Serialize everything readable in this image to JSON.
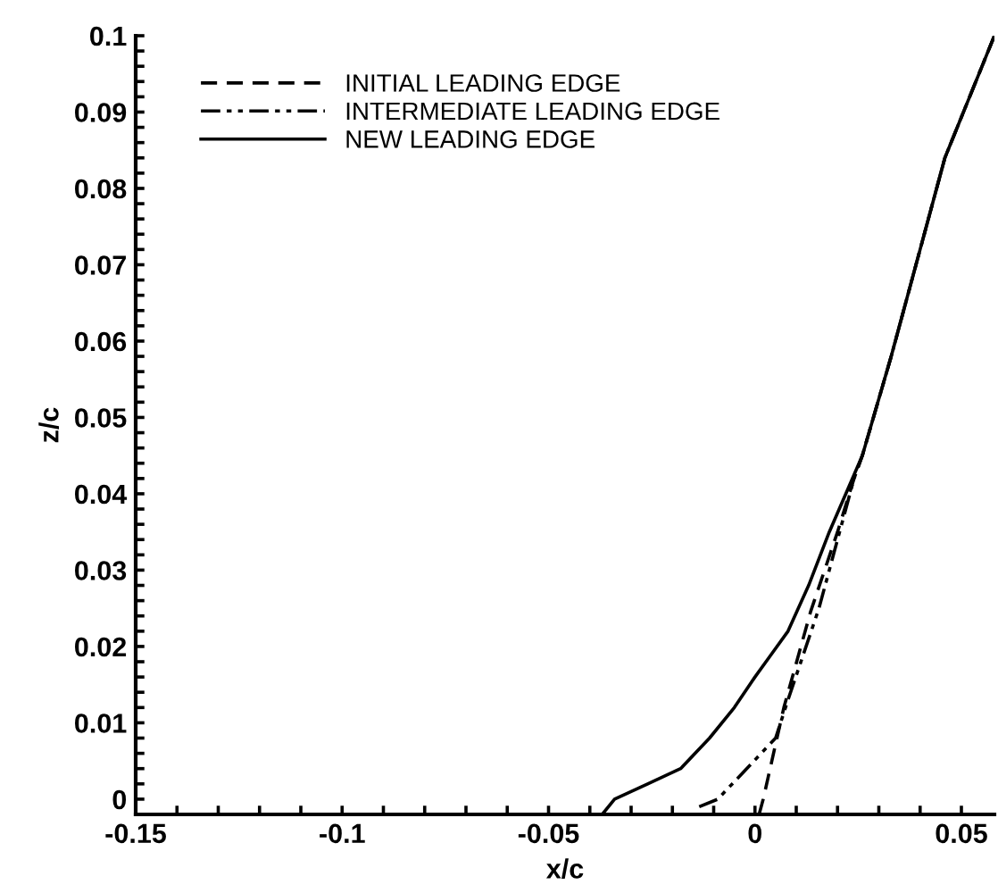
{
  "chart_data": {
    "type": "line",
    "xlabel": "x/c",
    "ylabel": "z/c",
    "xlim": [
      -0.15,
      0.058
    ],
    "ylim": [
      -0.002,
      0.1
    ],
    "xticks": [
      {
        "value": -0.15,
        "label": "-0.15"
      },
      {
        "value": -0.14,
        "label": null
      },
      {
        "value": -0.13,
        "label": null
      },
      {
        "value": -0.12,
        "label": null
      },
      {
        "value": -0.11,
        "label": null
      },
      {
        "value": -0.1,
        "label": "-0.1"
      },
      {
        "value": -0.09,
        "label": null
      },
      {
        "value": -0.08,
        "label": null
      },
      {
        "value": -0.07,
        "label": null
      },
      {
        "value": -0.06,
        "label": null
      },
      {
        "value": -0.05,
        "label": "-0.05"
      },
      {
        "value": -0.04,
        "label": null
      },
      {
        "value": -0.03,
        "label": null
      },
      {
        "value": -0.02,
        "label": null
      },
      {
        "value": -0.01,
        "label": null
      },
      0,
      {
        "value": 0.01,
        "label": null
      },
      {
        "value": 0.02,
        "label": null
      },
      {
        "value": 0.03,
        "label": null
      },
      {
        "value": 0.04,
        "label": null
      },
      0.05
    ],
    "yticks": [
      0,
      {
        "value": 0.002,
        "label": null
      },
      {
        "value": 0.004,
        "label": null
      },
      {
        "value": 0.006,
        "label": null
      },
      {
        "value": 0.008,
        "label": null
      },
      0.01,
      {
        "value": 0.012,
        "label": null
      },
      {
        "value": 0.014,
        "label": null
      },
      {
        "value": 0.016,
        "label": null
      },
      {
        "value": 0.018,
        "label": null
      },
      0.02,
      {
        "value": 0.022,
        "label": null
      },
      {
        "value": 0.024,
        "label": null
      },
      {
        "value": 0.026,
        "label": null
      },
      {
        "value": 0.028,
        "label": null
      },
      0.03,
      {
        "value": 0.032,
        "label": null
      },
      {
        "value": 0.034,
        "label": null
      },
      {
        "value": 0.036,
        "label": null
      },
      {
        "value": 0.038,
        "label": null
      },
      0.04,
      {
        "value": 0.042,
        "label": null
      },
      {
        "value": 0.044,
        "label": null
      },
      {
        "value": 0.046,
        "label": null
      },
      {
        "value": 0.048,
        "label": null
      },
      0.05,
      {
        "value": 0.052,
        "label": null
      },
      {
        "value": 0.054,
        "label": null
      },
      {
        "value": 0.056,
        "label": null
      },
      {
        "value": 0.058,
        "label": null
      },
      0.06,
      {
        "value": 0.062,
        "label": null
      },
      {
        "value": 0.064,
        "label": null
      },
      {
        "value": 0.066,
        "label": null
      },
      {
        "value": 0.068,
        "label": null
      },
      0.07,
      {
        "value": 0.072,
        "label": null
      },
      {
        "value": 0.074,
        "label": null
      },
      {
        "value": 0.076,
        "label": null
      },
      {
        "value": 0.078,
        "label": null
      },
      0.08,
      {
        "value": 0.082,
        "label": null
      },
      {
        "value": 0.084,
        "label": null
      },
      {
        "value": 0.086,
        "label": null
      },
      {
        "value": 0.088,
        "label": null
      },
      0.09,
      {
        "value": 0.092,
        "label": null
      },
      {
        "value": 0.094,
        "label": null
      },
      {
        "value": 0.096,
        "label": null
      },
      {
        "value": 0.098,
        "label": null
      },
      0.1
    ],
    "legend": "top left",
    "grid": false,
    "marker": "none",
    "series": [
      {
        "name": "INITIAL LEADING EDGE",
        "color": "#000000",
        "line_style": "dashed",
        "x": [
          0.001,
          0.002,
          0.007,
          0.0135,
          0.02,
          0.024,
          0.026,
          0.033,
          0.04,
          0.046,
          0.052,
          0.058
        ],
        "values": [
          -0.002,
          0,
          0.012,
          0.0246,
          0.035,
          0.042,
          0.045,
          0.058,
          0.072,
          0.084,
          0.092,
          0.1
        ]
      },
      {
        "name": "INTERMEDIATE LEADING EDGE",
        "color": "#000000",
        "line_style": "dashdot",
        "x": [
          -0.0135,
          -0.009,
          0.005,
          0.008,
          0.0155,
          0.021,
          0.024,
          0.026,
          0.033,
          0.04,
          0.046,
          0.052,
          0.058
        ],
        "values": [
          -0.001,
          0,
          0.008,
          0.013,
          0.025,
          0.036,
          0.042,
          0.045,
          0.058,
          0.072,
          0.084,
          0.092,
          0.1
        ]
      },
      {
        "name": "NEW LEADING EDGE",
        "color": "#000000",
        "line_style": "solid",
        "x": [
          -0.037,
          -0.034,
          -0.026,
          -0.018,
          -0.011,
          -0.005,
          0,
          0.004,
          0.008,
          0.013,
          0.018,
          0.022,
          0.026,
          0.033,
          0.04,
          0.046,
          0.052,
          0.058
        ],
        "values": [
          -0.002,
          0,
          0.002,
          0.004,
          0.008,
          0.012,
          0.016,
          0.019,
          0.022,
          0.028,
          0.035,
          0.04,
          0.045,
          0.058,
          0.072,
          0.084,
          0.092,
          0.1
        ]
      }
    ]
  }
}
